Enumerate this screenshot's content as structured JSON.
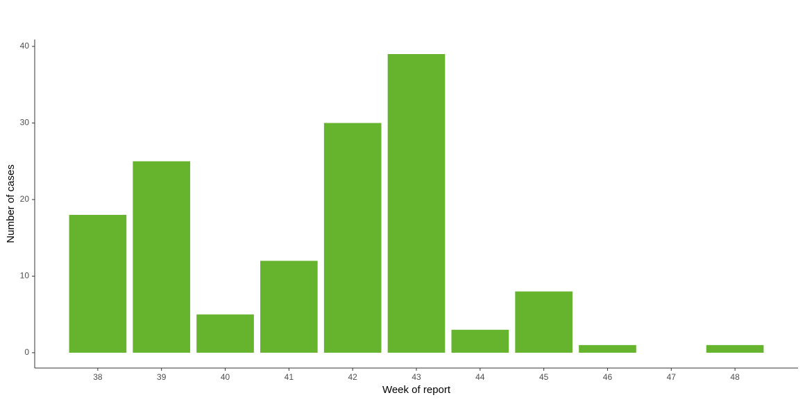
{
  "chart_data": {
    "type": "bar",
    "x_label": "Week of report",
    "y_label": "Number of cases",
    "x": [
      38,
      39,
      40,
      41,
      42,
      43,
      44,
      45,
      46,
      48
    ],
    "values": [
      18,
      25,
      5,
      12,
      30,
      39,
      3,
      8,
      1,
      1
    ],
    "color": "#66b32e",
    "xlim": [
      37.01,
      48.99
    ],
    "xticks": [
      38,
      39,
      40,
      41,
      42,
      43,
      44,
      45,
      46,
      47,
      48
    ],
    "ylim": [
      -2,
      40.9
    ],
    "yticks": [
      0,
      10,
      20,
      30,
      40
    ],
    "grid": false
  }
}
